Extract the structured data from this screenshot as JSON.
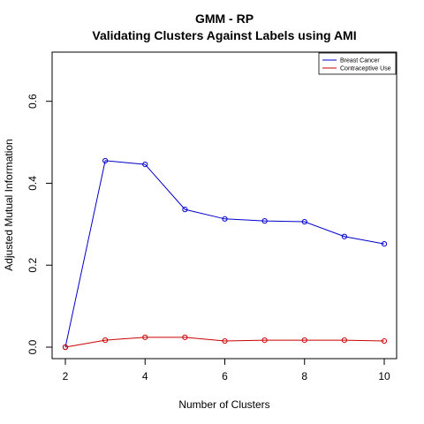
{
  "chart_data": {
    "type": "line",
    "title": "GMM - RP",
    "subtitle": "Validating Clusters Against Labels using AMI",
    "xlabel": "Number of Clusters",
    "ylabel": "Adjusted Mutual Information",
    "x": [
      2,
      3,
      4,
      5,
      6,
      7,
      8,
      9,
      10
    ],
    "xlim": [
      2,
      10
    ],
    "ylim": [
      0,
      0.72
    ],
    "xticks": [
      2,
      4,
      6,
      8,
      10
    ],
    "xtick_labels": [
      "2",
      "4",
      "6",
      "8",
      "10"
    ],
    "yticks": [
      0.0,
      0.2,
      0.4,
      0.6
    ],
    "ytick_labels": [
      "0.0",
      "0.2",
      "0.4",
      "0.6"
    ],
    "grid": false,
    "legend_position": "top-right",
    "series": [
      {
        "name": "Breast Cancer",
        "color": "#0000cc",
        "values": [
          0.0,
          0.455,
          0.446,
          0.336,
          0.313,
          0.308,
          0.306,
          0.27,
          0.252
        ]
      },
      {
        "name": "Contraceptive Use",
        "color": "#cc0000",
        "values": [
          0.0,
          0.017,
          0.024,
          0.024,
          0.015,
          0.017,
          0.017,
          0.017,
          0.015
        ]
      }
    ]
  }
}
